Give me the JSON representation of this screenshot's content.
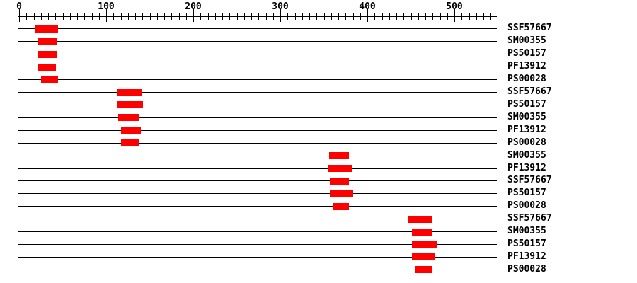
{
  "colors": {
    "marker": "#ff0000",
    "line": "#000000",
    "background": "#ffffff"
  },
  "chart_data": {
    "type": "bar",
    "orientation": "horizontal",
    "title": "",
    "xlabel": "",
    "ylabel": "",
    "x_axis": {
      "tick_labels": [
        "0",
        "100",
        "200",
        "300",
        "400",
        "500"
      ],
      "ticks": [
        0,
        100,
        200,
        300,
        400,
        500
      ],
      "range": [
        0,
        547
      ],
      "minor_intervals_per_major": 12,
      "grid": false
    },
    "marker_color": "#ff0000",
    "legend_position": "none",
    "rows": [
      {
        "label": "SSF57667",
        "start": 19,
        "end": 45
      },
      {
        "label": "SM00355",
        "start": 22,
        "end": 44
      },
      {
        "label": "PS50157",
        "start": 22,
        "end": 43
      },
      {
        "label": "PF13912",
        "start": 22,
        "end": 42
      },
      {
        "label": "PS00028",
        "start": 25,
        "end": 45
      },
      {
        "label": "SSF57667",
        "start": 113,
        "end": 141
      },
      {
        "label": "PS50157",
        "start": 113,
        "end": 142
      },
      {
        "label": "SM00355",
        "start": 114,
        "end": 137
      },
      {
        "label": "PF13912",
        "start": 117,
        "end": 140
      },
      {
        "label": "PS00028",
        "start": 117,
        "end": 137
      },
      {
        "label": "SM00355",
        "start": 356,
        "end": 379
      },
      {
        "label": "PF13912",
        "start": 355,
        "end": 382
      },
      {
        "label": "SSF57667",
        "start": 357,
        "end": 379
      },
      {
        "label": "PS50157",
        "start": 357,
        "end": 384
      },
      {
        "label": "PS00028",
        "start": 360,
        "end": 379
      },
      {
        "label": "SSF57667",
        "start": 446,
        "end": 474
      },
      {
        "label": "SM00355",
        "start": 451,
        "end": 474
      },
      {
        "label": "PS50157",
        "start": 451,
        "end": 480
      },
      {
        "label": "PF13912",
        "start": 451,
        "end": 477
      },
      {
        "label": "PS00028",
        "start": 455,
        "end": 475
      }
    ]
  }
}
